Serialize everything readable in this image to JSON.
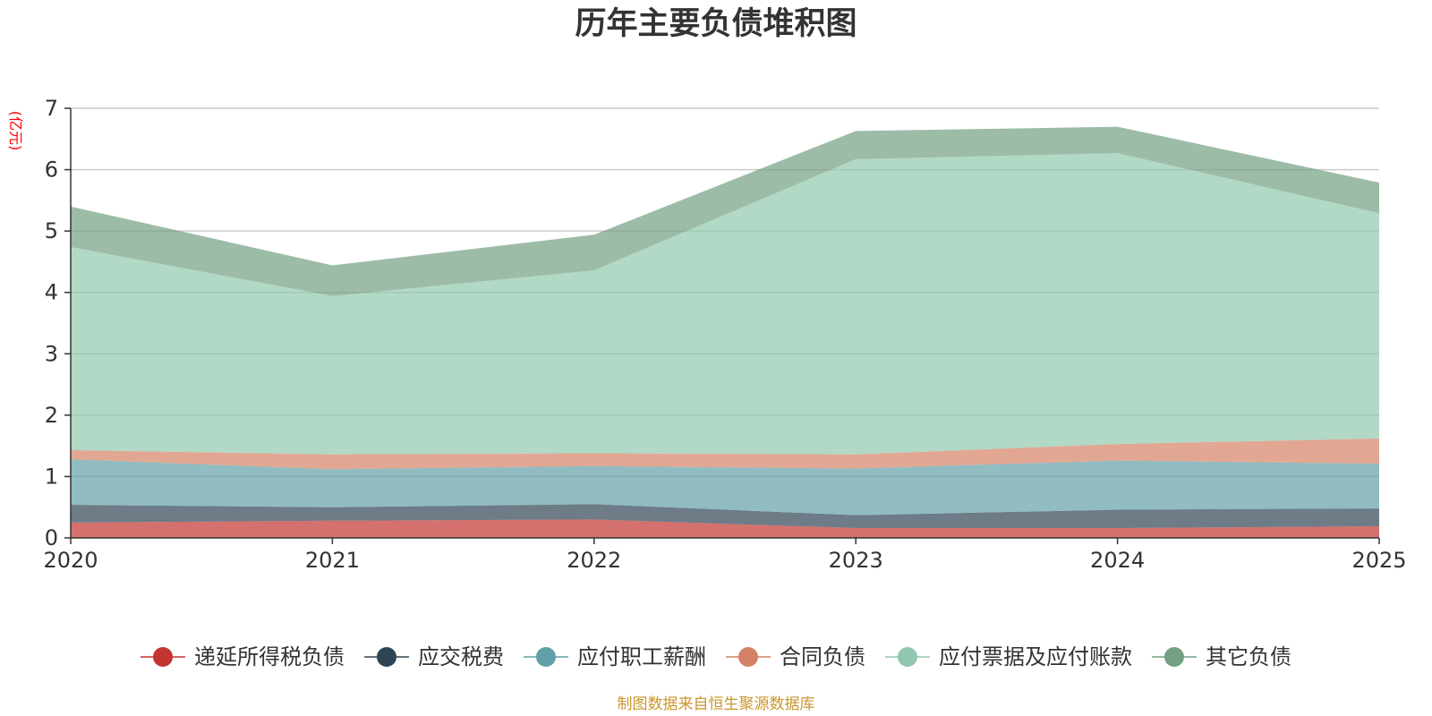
{
  "chart_data": {
    "type": "area",
    "stacked": true,
    "title": "历年主要负债堆积图",
    "ylabel": "(亿元)",
    "xlabel": "",
    "x": [
      "2020",
      "2021",
      "2022",
      "2023",
      "2024",
      "2025"
    ],
    "ylim": [
      0,
      7
    ],
    "yticks": [
      "0",
      "1",
      "2",
      "3",
      "4",
      "5",
      "6",
      "7"
    ],
    "grid": true,
    "legend_position": "bottom",
    "series": [
      {
        "name": "递延所得税负债",
        "color": "#c23531",
        "values": [
          0.25,
          0.28,
          0.3,
          0.16,
          0.16,
          0.19
        ]
      },
      {
        "name": "应交税费",
        "color": "#2f4554",
        "values": [
          0.29,
          0.22,
          0.25,
          0.21,
          0.3,
          0.29
        ]
      },
      {
        "name": "应付职工薪酬",
        "color": "#61a0a8",
        "values": [
          0.74,
          0.62,
          0.62,
          0.76,
          0.8,
          0.73
        ]
      },
      {
        "name": "合同负债",
        "color": "#d48265",
        "values": [
          0.15,
          0.24,
          0.21,
          0.23,
          0.27,
          0.41
        ]
      },
      {
        "name": "应付票据及应付账款",
        "color": "#91c7ae",
        "values": [
          3.31,
          2.58,
          2.98,
          4.81,
          4.74,
          3.67
        ]
      },
      {
        "name": "其它负债",
        "color": "#749f83",
        "values": [
          0.66,
          0.5,
          0.58,
          0.46,
          0.43,
          0.5
        ]
      }
    ],
    "source_note": "制图数据来自恒生聚源数据库"
  }
}
